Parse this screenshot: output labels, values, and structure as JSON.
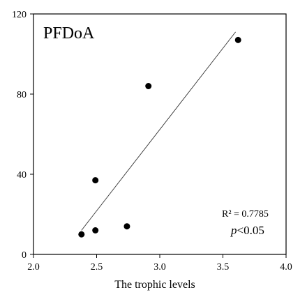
{
  "chart_data": {
    "type": "scatter",
    "title": "PFDoA",
    "xlabel": "The trophic levels",
    "ylabel": "",
    "xlim": [
      2.0,
      4.0
    ],
    "ylim": [
      0,
      120
    ],
    "xticks": [
      "2.0",
      "2.5",
      "3.0",
      "3.5",
      "4.0"
    ],
    "xtick_values": [
      2.0,
      2.5,
      3.0,
      3.5,
      4.0
    ],
    "yticks": [
      "0",
      "40",
      "80",
      "120"
    ],
    "ytick_values": [
      0,
      40,
      80,
      120
    ],
    "grid": false,
    "points": [
      {
        "x": 2.38,
        "y": 10
      },
      {
        "x": 2.49,
        "y": 12
      },
      {
        "x": 2.49,
        "y": 37
      },
      {
        "x": 2.74,
        "y": 14
      },
      {
        "x": 2.91,
        "y": 84
      },
      {
        "x": 3.62,
        "y": 107
      }
    ],
    "trendline": {
      "x": [
        2.38,
        3.6
      ],
      "y": [
        12,
        111
      ]
    },
    "annotations": {
      "r2": "R² = 0.7785",
      "p_symbol": "p",
      "p_rest": "<0.05"
    }
  }
}
